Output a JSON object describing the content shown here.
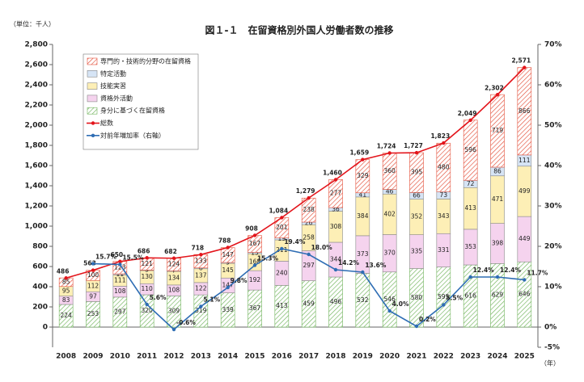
{
  "chart_data": {
    "type": "bar",
    "title": "図１-１　在留資格別外国人労働者数の推移",
    "y_unit": "（単位：千人）",
    "x_unit": "（年）",
    "categories": [
      "2008",
      "2009",
      "2010",
      "2011",
      "2012",
      "2013",
      "2014",
      "2015",
      "2016",
      "2017",
      "2018",
      "2019",
      "2020",
      "2021",
      "2022",
      "2023",
      "2024",
      "2025"
    ],
    "ylim": [
      -200,
      2800
    ],
    "yticks": [
      0,
      200,
      400,
      600,
      800,
      {
        "value": 1000,
        "label": "1,000"
      },
      {
        "value": 1200,
        "label": "1,200"
      },
      {
        "value": 1400,
        "label": "1,400"
      },
      {
        "value": 1600,
        "label": "1,600"
      },
      {
        "value": 1800,
        "label": "1,800"
      },
      {
        "value": 2000,
        "label": "2,000"
      },
      {
        "value": 2200,
        "label": "2,200"
      },
      {
        "value": 2400,
        "label": "2,400"
      },
      {
        "value": 2600,
        "label": "2,600"
      },
      {
        "value": 2800,
        "label": "2,800"
      }
    ],
    "y2lim": [
      -5,
      70
    ],
    "y2ticks": [
      {
        "value": -5,
        "label": "-5%"
      },
      {
        "value": 0,
        "label": "0%"
      },
      {
        "value": 10,
        "label": "10%"
      },
      {
        "value": 20,
        "label": "20%"
      },
      {
        "value": 30,
        "label": "30%"
      },
      {
        "value": 40,
        "label": "40%"
      },
      {
        "value": 50,
        "label": "50%"
      },
      {
        "value": 60,
        "label": "60%"
      },
      {
        "value": 70,
        "label": "70%"
      }
    ],
    "grid": false,
    "series": [
      {
        "name": "身分に基づく在留資格",
        "type": "bar",
        "color": "#6fb35a",
        "hatch": true,
        "values": [
          224,
          253,
          297,
          320,
          309,
          319,
          339,
          367,
          413,
          459,
          496,
          532,
          546,
          580,
          595,
          616,
          629,
          646
        ]
      },
      {
        "name": "資格外活動",
        "type": "bar",
        "color": "#f5d3ee",
        "hatch": false,
        "values": [
          83,
          97,
          108,
          110,
          108,
          122,
          147,
          192,
          240,
          297,
          344,
          373,
          370,
          335,
          331,
          353,
          398,
          449
        ]
      },
      {
        "name": "技能実習",
        "type": "bar",
        "color": "#fdefb6",
        "hatch": false,
        "values": [
          95,
          112,
          111,
          130,
          134,
          137,
          145,
          168,
          211,
          258,
          308,
          384,
          402,
          352,
          343,
          413,
          471,
          499
        ]
      },
      {
        "name": "特定活動",
        "type": "bar",
        "color": "#d6e4f5",
        "hatch": false,
        "values": [
          null,
          null,
          11,
          5,
          7,
          8,
          9,
          13,
          19,
          26,
          36,
          41,
          46,
          66,
          73,
          72,
          86,
          111
        ]
      },
      {
        "name": "専門的・技術的分野の在留資格",
        "type": "bar",
        "color": "#e4503b",
        "hatch": true,
        "values": [
          85,
          100,
          123,
          121,
          124,
          133,
          147,
          167,
          201,
          238,
          277,
          329,
          360,
          395,
          480,
          596,
          719,
          866
        ]
      },
      {
        "name": "総数",
        "type": "line",
        "color": "#e3141b",
        "values": [
          486,
          563,
          650,
          686,
          682,
          718,
          788,
          908,
          1084,
          1279,
          1460,
          1659,
          1724,
          1727,
          1823,
          2049,
          2302,
          2571
        ],
        "value_labels": [
          "486",
          "563",
          "650",
          "686",
          "682",
          "718",
          "788",
          "908",
          "1,084",
          "1,279",
          "1,460",
          "1,659",
          "1,724",
          "1,727",
          "1,823",
          "2,049",
          "2,302",
          "2,571"
        ]
      },
      {
        "name": "対前年増加率（右軸）",
        "type": "line",
        "axis": "y2",
        "color": "#2e6db4",
        "values": [
          null,
          15.7,
          15.5,
          5.6,
          -0.6,
          5.1,
          9.8,
          15.3,
          19.4,
          18.0,
          14.2,
          13.6,
          4.0,
          0.2,
          5.5,
          12.4,
          12.4,
          11.7
        ],
        "value_labels": [
          null,
          "15.7%",
          "15.5%",
          "5.6%",
          "-0.6%",
          "5.1%",
          "9.8%",
          "15.3%",
          "19.4%",
          "18.0%",
          "14.2%",
          "13.6%",
          "4.0%",
          "0.2%",
          "5.5%",
          "12.4%",
          "12.4%",
          "11.7%"
        ]
      }
    ]
  }
}
